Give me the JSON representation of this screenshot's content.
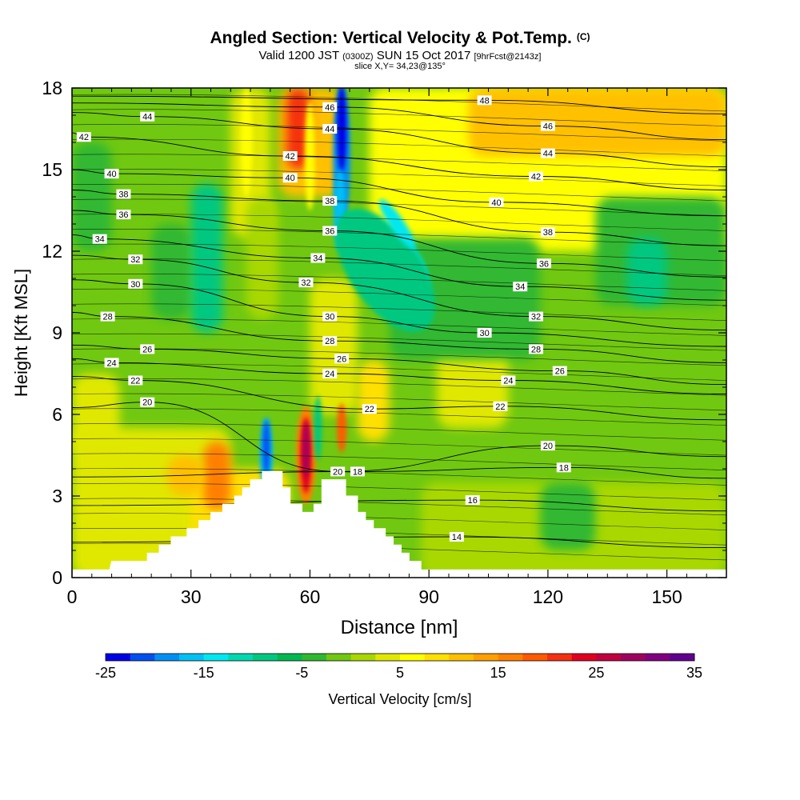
{
  "header": {
    "title": "Angled Section: Vertical Velocity & Pot.Temp.",
    "title_suffix": "(C)",
    "valid_prefix": "Valid 1200 JST",
    "valid_zulu": "(0300Z)",
    "valid_date": "SUN 15 Oct 2017",
    "forecast_tag": "[9hrFcst@2143z]",
    "slice_info": "slice X,Y= 34,23@135°"
  },
  "chart_data": {
    "type": "heatmap",
    "title": "Angled Section: Vertical Velocity & Pot.Temp.",
    "xlabel": "Distance [nm]",
    "ylabel": "Height [Kft MSL]",
    "xlim": [
      0,
      165
    ],
    "ylim": [
      0,
      18
    ],
    "x_ticks": [
      0,
      30,
      60,
      90,
      120,
      150
    ],
    "y_ticks": [
      0,
      3,
      6,
      9,
      12,
      15,
      18
    ],
    "colorbar": {
      "label": "Vertical Velocity [cm/s]",
      "min": -25,
      "max": 35,
      "step": 2.5,
      "tick_labels": [
        -25,
        -15,
        -5,
        5,
        15,
        25,
        35
      ],
      "colors": [
        "#0000e6",
        "#0050f0",
        "#0090f5",
        "#00c0f5",
        "#00e8f0",
        "#00d8b0",
        "#00c880",
        "#00b850",
        "#30b830",
        "#70c810",
        "#a8d800",
        "#e0e800",
        "#ffff00",
        "#ffe000",
        "#ffc000",
        "#ffa000",
        "#ff8000",
        "#ff5a00",
        "#f53010",
        "#e00020",
        "#c00040",
        "#a00060",
        "#800080",
        "#600090"
      ]
    },
    "terrain_kft": [
      [
        9.5,
        0.3
      ],
      [
        10,
        0.6
      ],
      [
        19,
        0.6
      ],
      [
        19,
        0.9
      ],
      [
        22,
        0.9
      ],
      [
        22,
        1.2
      ],
      [
        25,
        1.2
      ],
      [
        25,
        1.5
      ],
      [
        29,
        1.5
      ],
      [
        29,
        1.8
      ],
      [
        32,
        1.8
      ],
      [
        32,
        2.1
      ],
      [
        35,
        2.1
      ],
      [
        35,
        2.4
      ],
      [
        38,
        2.4
      ],
      [
        38,
        2.7
      ],
      [
        41,
        2.7
      ],
      [
        41,
        3.0
      ],
      [
        43,
        3.0
      ],
      [
        43,
        3.3
      ],
      [
        45,
        3.3
      ],
      [
        45,
        3.6
      ],
      [
        48,
        3.6
      ],
      [
        48,
        3.9
      ],
      [
        53,
        3.9
      ],
      [
        53,
        3.3
      ],
      [
        55,
        3.3
      ],
      [
        55,
        2.7
      ],
      [
        58,
        2.7
      ],
      [
        58,
        2.4
      ],
      [
        61,
        2.4
      ],
      [
        61,
        2.7
      ],
      [
        63,
        2.7
      ],
      [
        63,
        3.6
      ],
      [
        69,
        3.6
      ],
      [
        69,
        3.0
      ],
      [
        72,
        3.0
      ],
      [
        72,
        2.4
      ],
      [
        74,
        2.4
      ],
      [
        74,
        2.1
      ],
      [
        76,
        2.1
      ],
      [
        76,
        1.8
      ],
      [
        79,
        1.8
      ],
      [
        79,
        1.5
      ],
      [
        81,
        1.5
      ],
      [
        81,
        1.2
      ],
      [
        83,
        1.2
      ],
      [
        83,
        0.9
      ],
      [
        85,
        0.9
      ],
      [
        85,
        0.6
      ],
      [
        88,
        0.6
      ],
      [
        88,
        0.3
      ]
    ],
    "theta_contours": [
      {
        "value": "14",
        "labels": [
          [
            97,
            1.5
          ]
        ]
      },
      {
        "value": "16",
        "labels": [
          [
            101,
            2.85
          ]
        ]
      },
      {
        "value": "18",
        "labels": [
          [
            72,
            3.9
          ],
          [
            124,
            4.05
          ]
        ]
      },
      {
        "value": "20",
        "labels": [
          [
            19,
            6.45
          ],
          [
            67,
            3.9
          ],
          [
            120,
            4.85
          ]
        ]
      },
      {
        "value": "22",
        "labels": [
          [
            16,
            7.25
          ],
          [
            75,
            6.2
          ],
          [
            108,
            6.3
          ]
        ]
      },
      {
        "value": "24",
        "labels": [
          [
            10,
            7.9
          ],
          [
            65,
            7.5
          ],
          [
            110,
            7.25
          ]
        ]
      },
      {
        "value": "26",
        "labels": [
          [
            19,
            8.4
          ],
          [
            68,
            8.05
          ],
          [
            123,
            7.6
          ]
        ]
      },
      {
        "value": "28",
        "labels": [
          [
            9,
            9.6
          ],
          [
            65,
            8.7
          ],
          [
            117,
            8.4
          ]
        ]
      },
      {
        "value": "30",
        "labels": [
          [
            16,
            10.8
          ],
          [
            65,
            9.6
          ],
          [
            104,
            9.0
          ]
        ]
      },
      {
        "value": "32",
        "labels": [
          [
            16,
            11.7
          ],
          [
            59,
            10.85
          ],
          [
            117,
            9.6
          ]
        ]
      },
      {
        "value": "34",
        "labels": [
          [
            7,
            12.45
          ],
          [
            62,
            11.75
          ],
          [
            113,
            10.7
          ]
        ]
      },
      {
        "value": "36",
        "labels": [
          [
            13,
            13.35
          ],
          [
            65,
            12.75
          ],
          [
            119,
            11.55
          ]
        ]
      },
      {
        "value": "38",
        "labels": [
          [
            13,
            14.1
          ],
          [
            65,
            13.85
          ],
          [
            120,
            12.7
          ]
        ]
      },
      {
        "value": "40",
        "labels": [
          [
            10,
            14.85
          ],
          [
            55,
            14.7
          ],
          [
            107,
            13.8
          ]
        ]
      },
      {
        "value": "42",
        "labels": [
          [
            3,
            16.2
          ],
          [
            55,
            15.5
          ],
          [
            117,
            14.75
          ]
        ]
      },
      {
        "value": "44",
        "labels": [
          [
            19,
            16.95
          ],
          [
            65,
            16.5
          ],
          [
            120,
            15.6
          ]
        ]
      },
      {
        "value": "46",
        "labels": [
          [
            65,
            17.3
          ],
          [
            120,
            16.6
          ]
        ]
      },
      {
        "value": "48",
        "labels": [
          [
            104,
            17.55
          ]
        ]
      }
    ]
  }
}
